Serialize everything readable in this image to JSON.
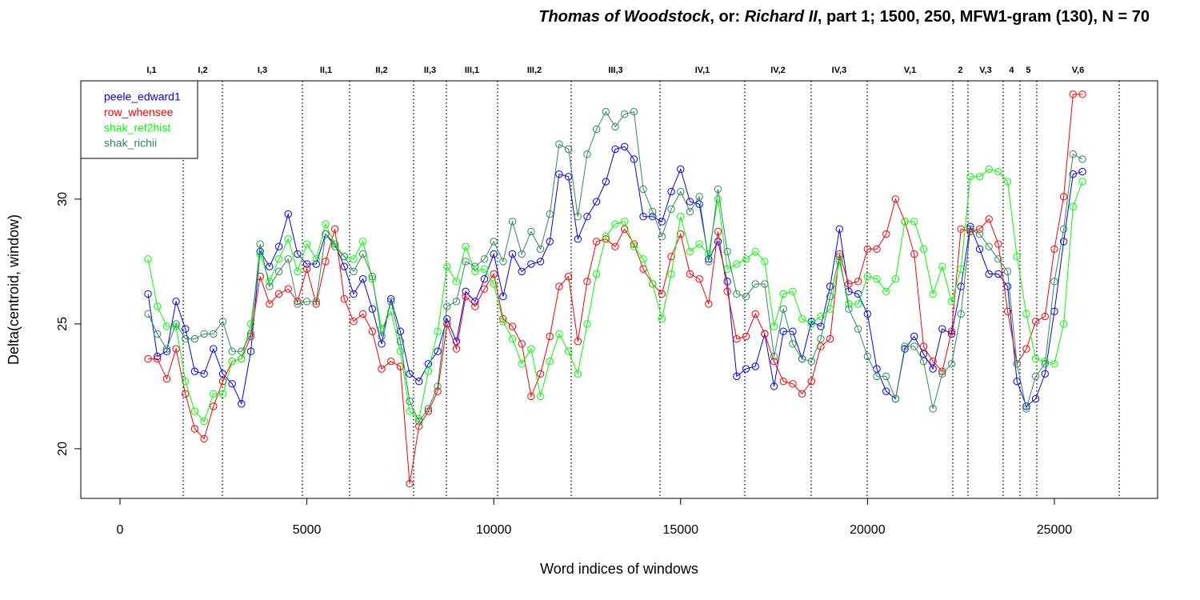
{
  "chart_data": {
    "type": "line",
    "title_parts": [
      {
        "text": "Thomas of Woodstock",
        "italic": true
      },
      {
        "text": ", or: ",
        "italic": false
      },
      {
        "text": "Richard II",
        "italic": true
      },
      {
        "text": ", part 1; 1500, 250, MFW1-gram (130), N = 70",
        "italic": false
      }
    ],
    "xlabel": "Word indices of windows",
    "ylabel": "Delta(centroid, window)",
    "xlim": [
      -1049,
      27762
    ],
    "ylim": [
      18.01,
      34.74
    ],
    "xticks": [
      0,
      5000,
      10000,
      15000,
      20000,
      25000
    ],
    "yticks": [
      20,
      25,
      30
    ],
    "legend": "top-left",
    "x": [
      750,
      1000,
      1250,
      1500,
      1750,
      2000,
      2250,
      2500,
      2750,
      3000,
      3250,
      3500,
      3750,
      4000,
      4250,
      4500,
      4750,
      5000,
      5250,
      5500,
      5750,
      6000,
      6250,
      6500,
      6750,
      7000,
      7250,
      7500,
      7750,
      8000,
      8250,
      8500,
      8750,
      9000,
      9250,
      9500,
      9750,
      10000,
      10250,
      10500,
      10750,
      11000,
      11250,
      11500,
      11750,
      12000,
      12250,
      12500,
      12750,
      13000,
      13250,
      13500,
      13750,
      14000,
      14250,
      14500,
      14750,
      15000,
      15250,
      15500,
      15750,
      16000,
      16250,
      16500,
      16750,
      17000,
      17250,
      17500,
      17750,
      18000,
      18250,
      18500,
      18750,
      19000,
      19250,
      19500,
      19750,
      20000,
      20250,
      20500,
      20750,
      21000,
      21250,
      21500,
      21750,
      22000,
      22250,
      22500,
      22750,
      23000,
      23250,
      23500,
      23750,
      24000,
      24250,
      24500,
      24750,
      25000,
      25250,
      25500,
      25750
    ],
    "series": [
      {
        "name": "peele_edward1",
        "color": "#0000ff",
        "values": [
          26.2,
          23.7,
          23.9,
          25.9,
          24.8,
          23.1,
          23.0,
          24.0,
          23.0,
          22.6,
          21.8,
          23.9,
          27.9,
          27.3,
          28.1,
          29.4,
          27.8,
          27.4,
          27.4,
          28.6,
          28.2,
          27.3,
          26.2,
          26.8,
          25.6,
          24.2,
          26.0,
          24.7,
          23.0,
          22.7,
          23.4,
          23.9,
          25.2,
          24.3,
          26.3,
          25.9,
          26.8,
          27.8,
          26.1,
          27.8,
          27.1,
          27.4,
          27.5,
          28.3,
          31.0,
          30.9,
          28.4,
          29.3,
          29.9,
          30.7,
          32.0,
          32.1,
          31.6,
          29.3,
          29.3,
          29.1,
          30.3,
          31.2,
          29.9,
          29.8,
          27.6,
          28.3,
          26.7,
          22.9,
          23.2,
          23.3,
          24.6,
          22.5,
          24.7,
          24.7,
          23.6,
          25.1,
          24.9,
          26.5,
          28.8,
          26.3,
          26.2,
          25.4,
          23.2,
          22.3,
          22.0,
          24.0,
          24.5,
          23.8,
          23.2,
          24.8,
          24.6,
          26.5,
          28.9,
          28.0,
          27.0,
          27.0,
          26.5,
          22.7,
          21.7,
          22.0,
          23.0,
          25.5,
          28.3,
          31.0,
          31.1
        ]
      },
      {
        "name": "row_whensee",
        "color": "#ff0000",
        "values": [
          23.6,
          23.6,
          22.8,
          24.0,
          22.2,
          20.8,
          20.4,
          21.7,
          22.7,
          23.5,
          23.6,
          24.5,
          26.9,
          25.8,
          26.2,
          26.4,
          25.9,
          27.2,
          25.8,
          27.5,
          28.8,
          26.0,
          25.1,
          25.4,
          24.7,
          23.2,
          23.5,
          23.3,
          18.6,
          20.9,
          21.5,
          22.3,
          25.0,
          24.0,
          26.1,
          25.7,
          26.4,
          27.0,
          25.2,
          24.9,
          24.2,
          22.1,
          23.0,
          24.5,
          26.5,
          26.9,
          24.3,
          26.7,
          28.3,
          28.4,
          28.1,
          28.8,
          28.2,
          27.2,
          26.6,
          26.2,
          27.7,
          28.6,
          27.0,
          26.8,
          25.8,
          28.7,
          26.3,
          24.4,
          24.5,
          25.4,
          24.6,
          23.5,
          22.7,
          22.6,
          22.2,
          22.7,
          24.1,
          24.4,
          27.8,
          26.6,
          26.7,
          28.0,
          28.0,
          28.6,
          30.0,
          29.1,
          27.8,
          24.1,
          23.5,
          23.1,
          24.7,
          28.8,
          28.7,
          28.8,
          29.2,
          28.2,
          25.5,
          23.4,
          24.0,
          25.1,
          25.3,
          28.0,
          30.1,
          34.2,
          34.2
        ]
      },
      {
        "name": "shak_ref2hist",
        "color": "#00ff00",
        "values": [
          27.6,
          25.7,
          24.9,
          24.9,
          22.7,
          21.5,
          21.1,
          22.2,
          22.2,
          23.5,
          23.6,
          25.0,
          27.8,
          26.7,
          27.6,
          28.4,
          27.1,
          28.2,
          27.6,
          29.0,
          28.2,
          27.7,
          27.6,
          28.3,
          26.8,
          24.8,
          25.5,
          23.9,
          21.5,
          21.2,
          23.1,
          24.7,
          27.3,
          26.7,
          28.1,
          27.1,
          27.2,
          26.6,
          25.1,
          24.4,
          23.4,
          24.0,
          22.1,
          23.5,
          24.6,
          23.9,
          23.0,
          25.0,
          27.0,
          28.5,
          29.0,
          29.1,
          28.1,
          27.6,
          26.6,
          25.2,
          27.0,
          29.3,
          27.9,
          28.2,
          27.8,
          30.0,
          27.2,
          27.4,
          27.6,
          27.9,
          27.5,
          24.9,
          26.2,
          26.3,
          25.2,
          25.0,
          25.3,
          25.6,
          27.5,
          25.8,
          25.8,
          26.9,
          26.8,
          26.3,
          26.8,
          29.1,
          29.1,
          28.0,
          26.2,
          27.3,
          25.9,
          27.2,
          30.9,
          30.9,
          31.2,
          31.1,
          30.7,
          27.7,
          25.4,
          23.6,
          23.5,
          23.4,
          25.0,
          29.7,
          30.7
        ]
      },
      {
        "name": "shak_richii",
        "color": "#2e8b57",
        "values": [
          25.4,
          24.6,
          24.0,
          25.0,
          24.4,
          24.4,
          24.6,
          24.6,
          25.1,
          23.9,
          23.9,
          24.6,
          28.2,
          26.5,
          27.1,
          27.6,
          25.8,
          25.9,
          25.9,
          28.6,
          28.1,
          27.7,
          27.1,
          27.8,
          26.9,
          24.5,
          25.9,
          24.3,
          21.9,
          21.1,
          21.6,
          22.5,
          25.7,
          25.9,
          27.5,
          27.3,
          27.6,
          28.3,
          27.5,
          29.1,
          27.8,
          28.7,
          28.0,
          29.4,
          32.2,
          32.0,
          29.3,
          31.8,
          32.8,
          33.5,
          32.9,
          33.4,
          33.5,
          30.4,
          29.5,
          28.5,
          29.6,
          30.3,
          29.5,
          30.1,
          27.5,
          30.4,
          27.9,
          26.2,
          26.1,
          26.6,
          26.6,
          23.7,
          25.6,
          24.2,
          23.6,
          23.5,
          24.4,
          26.1,
          27.7,
          25.6,
          24.8,
          23.7,
          22.9,
          22.9,
          22.0,
          24.1,
          24.1,
          23.5,
          21.6,
          23.0,
          23.4,
          25.4,
          28.8,
          28.6,
          28.1,
          27.6,
          27.1,
          23.4,
          21.6,
          22.9,
          23.4,
          26.7,
          28.8,
          31.8,
          31.6
        ]
      }
    ],
    "scenes": [
      {
        "label": "I,1",
        "end": 1691
      },
      {
        "label": "I,2",
        "end": 2740
      },
      {
        "label": "I,3",
        "end": 4880
      },
      {
        "label": "II,1",
        "end": 6143
      },
      {
        "label": "II,2",
        "end": 7855
      },
      {
        "label": "II,3",
        "end": 8733
      },
      {
        "label": "III,1",
        "end": 10103
      },
      {
        "label": "III,2",
        "end": 12072
      },
      {
        "label": "III,3",
        "end": 14448
      },
      {
        "label": "IV,1",
        "end": 16717
      },
      {
        "label": "IV,2",
        "end": 18493
      },
      {
        "label": "IV,3",
        "end": 19991
      },
      {
        "label": "V,1",
        "end": 22282
      },
      {
        "label": "2",
        "end": 22688
      },
      {
        "label": "V,3",
        "end": 23630
      },
      {
        "label": "4",
        "end": 24080
      },
      {
        "label": "5",
        "end": 24529
      },
      {
        "label": "V,6",
        "end": 26734
      }
    ]
  }
}
